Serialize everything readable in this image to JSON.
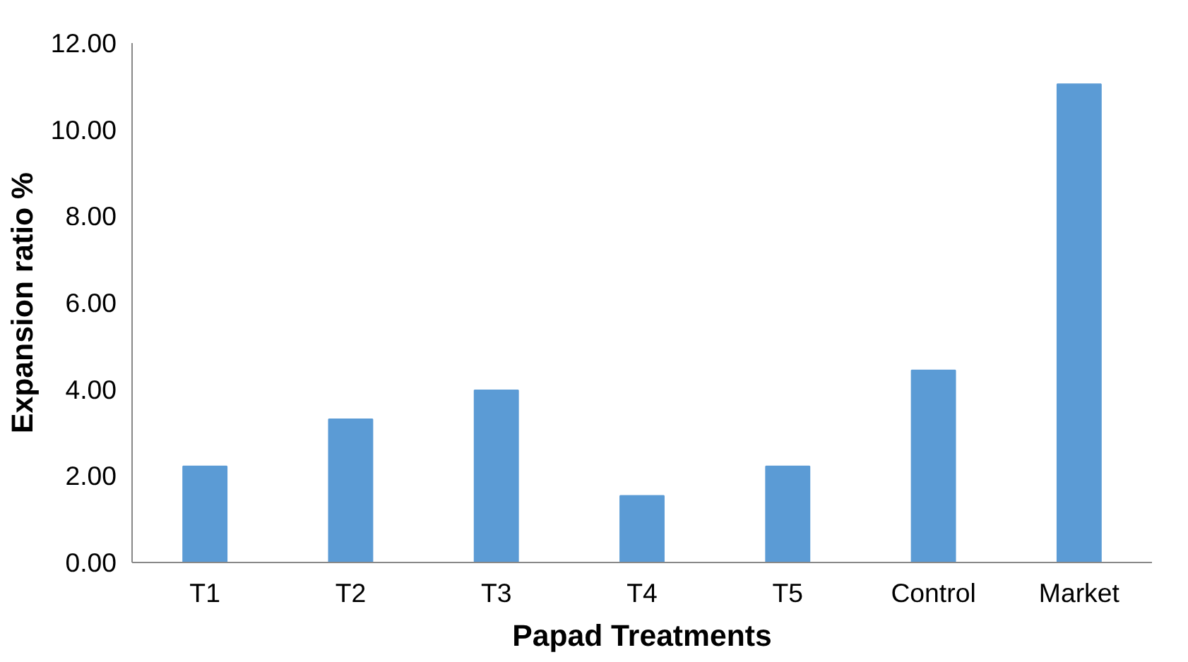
{
  "chart_data": {
    "type": "bar",
    "xlabel": "Papad Treatments",
    "ylabel": "Expansion ratio %",
    "categories": [
      "T1",
      "T2",
      "T3",
      "T4",
      "T5",
      "Control",
      "Market"
    ],
    "values": [
      2.22,
      3.31,
      3.98,
      1.54,
      2.22,
      4.44,
      11.05
    ],
    "color": "#5b9bd5",
    "ylim": [
      0,
      12
    ],
    "yticks": [
      {
        "value": 0,
        "label": "0.00"
      },
      {
        "value": 2,
        "label": "2.00"
      },
      {
        "value": 4,
        "label": "4.00"
      },
      {
        "value": 6,
        "label": "6.00"
      },
      {
        "value": 8,
        "label": "8.00"
      },
      {
        "value": 10,
        "label": "10.00"
      },
      {
        "value": 12,
        "label": "12.00"
      }
    ],
    "grid": false
  }
}
